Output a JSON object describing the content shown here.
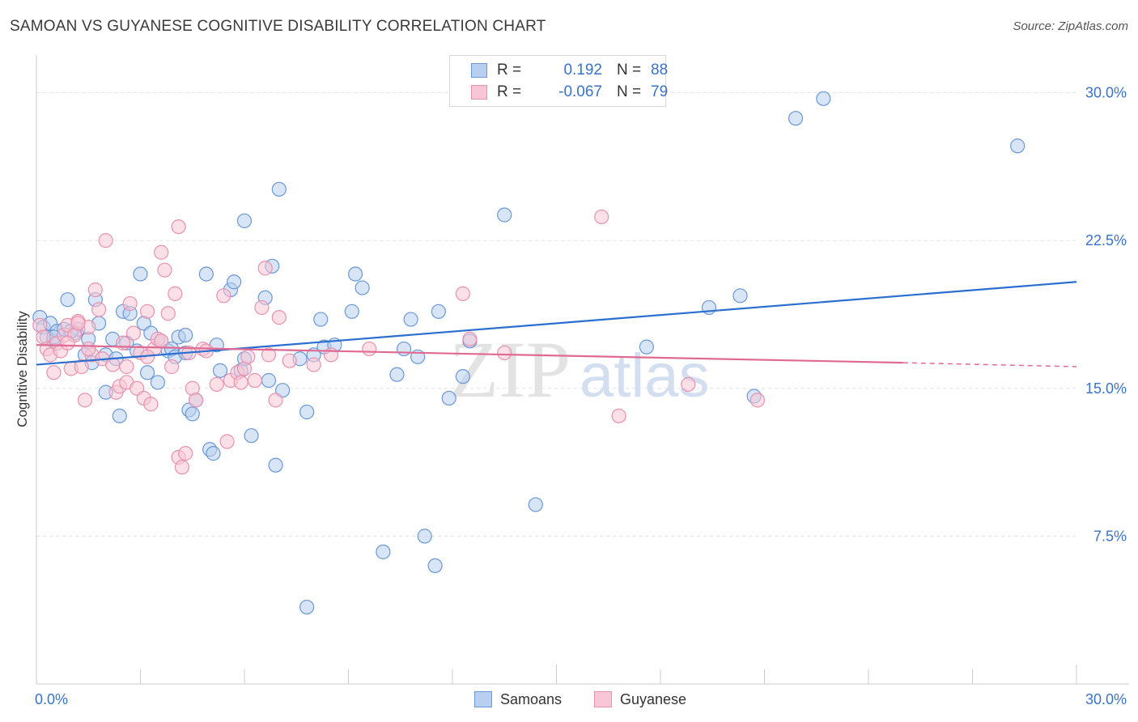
{
  "title": "SAMOAN VS GUYANESE COGNITIVE DISABILITY CORRELATION CHART",
  "source": "Source: ZipAtlas.com",
  "watermark": {
    "zip": "ZIP",
    "atlas": "atlas"
  },
  "legend": {
    "r_label": "R =",
    "n_label": "N =",
    "rows": [
      {
        "name": "Samoans",
        "r": "0.192",
        "n": "88",
        "fill": "#b8cff0",
        "stroke": "#6a98d8"
      },
      {
        "name": "Guyanese",
        "r": "-0.067",
        "n": "79",
        "fill": "#f8c6d6",
        "stroke": "#e892ae"
      }
    ]
  },
  "chart_data": {
    "type": "scatter",
    "title": "SAMOAN VS GUYANESE COGNITIVE DISABILITY CORRELATION CHART",
    "xlabel": "",
    "ylabel": "Cognitive Disability",
    "xlim": [
      0,
      30
    ],
    "ylim": [
      0,
      31.5
    ],
    "x_tick_labels": [
      "0.0%",
      "30.0%"
    ],
    "y_ticks": [
      7.5,
      15.0,
      22.5,
      30.0
    ],
    "y_tick_labels": [
      "7.5%",
      "15.0%",
      "22.5%",
      "30.0%"
    ],
    "grid": true,
    "series": [
      {
        "name": "Samoans",
        "color": "#6a98d8",
        "fill": "#b8cff0",
        "trend": {
          "x": [
            0,
            30
          ],
          "y": [
            16.2,
            20.4
          ],
          "color": "#2a6fd0"
        },
        "points": [
          [
            0.1,
            18.6
          ],
          [
            0.2,
            18.1
          ],
          [
            0.3,
            17.6
          ],
          [
            0.4,
            18.3
          ],
          [
            0.5,
            17.4
          ],
          [
            0.6,
            17.9
          ],
          [
            0.8,
            18.0
          ],
          [
            0.9,
            19.5
          ],
          [
            1.1,
            17.8
          ],
          [
            1.2,
            18.0
          ],
          [
            1.4,
            16.7
          ],
          [
            1.5,
            17.5
          ],
          [
            1.6,
            16.3
          ],
          [
            1.7,
            19.5
          ],
          [
            1.8,
            18.3
          ],
          [
            2.0,
            16.7
          ],
          [
            2.0,
            14.8
          ],
          [
            2.2,
            17.5
          ],
          [
            2.3,
            16.5
          ],
          [
            2.4,
            13.6
          ],
          [
            2.5,
            18.9
          ],
          [
            2.6,
            17.3
          ],
          [
            2.7,
            18.8
          ],
          [
            2.9,
            16.9
          ],
          [
            3.0,
            20.8
          ],
          [
            3.1,
            18.3
          ],
          [
            3.2,
            15.8
          ],
          [
            3.3,
            17.8
          ],
          [
            3.5,
            15.3
          ],
          [
            3.6,
            17.4
          ],
          [
            3.8,
            16.9
          ],
          [
            3.9,
            17.0
          ],
          [
            4.0,
            16.6
          ],
          [
            4.1,
            17.6
          ],
          [
            4.3,
            16.8
          ],
          [
            4.3,
            17.7
          ],
          [
            4.4,
            13.9
          ],
          [
            4.5,
            13.7
          ],
          [
            4.6,
            14.4
          ],
          [
            4.9,
            20.8
          ],
          [
            5.0,
            11.9
          ],
          [
            5.1,
            11.7
          ],
          [
            5.2,
            17.2
          ],
          [
            5.3,
            15.9
          ],
          [
            5.6,
            20.0
          ],
          [
            5.7,
            20.4
          ],
          [
            5.9,
            15.9
          ],
          [
            6.0,
            16.5
          ],
          [
            6.0,
            23.5
          ],
          [
            6.2,
            12.6
          ],
          [
            6.6,
            19.6
          ],
          [
            6.7,
            15.4
          ],
          [
            6.8,
            21.2
          ],
          [
            6.9,
            11.1
          ],
          [
            7.0,
            25.1
          ],
          [
            7.1,
            14.9
          ],
          [
            7.6,
            16.5
          ],
          [
            7.8,
            3.9
          ],
          [
            7.8,
            13.8
          ],
          [
            8.0,
            16.7
          ],
          [
            8.2,
            18.5
          ],
          [
            8.3,
            17.1
          ],
          [
            8.6,
            17.2
          ],
          [
            9.1,
            18.9
          ],
          [
            9.2,
            20.8
          ],
          [
            9.4,
            20.1
          ],
          [
            10.0,
            6.7
          ],
          [
            10.4,
            15.7
          ],
          [
            10.6,
            17.0
          ],
          [
            10.8,
            18.5
          ],
          [
            11.0,
            16.6
          ],
          [
            11.2,
            7.5
          ],
          [
            11.5,
            6.0
          ],
          [
            11.6,
            18.9
          ],
          [
            11.9,
            14.5
          ],
          [
            12.3,
            15.6
          ],
          [
            12.5,
            17.4
          ],
          [
            13.5,
            23.8
          ],
          [
            14.4,
            9.1
          ],
          [
            17.6,
            17.1
          ],
          [
            19.4,
            19.1
          ],
          [
            20.3,
            19.7
          ],
          [
            20.7,
            14.6
          ],
          [
            21.9,
            28.7
          ],
          [
            22.7,
            29.7
          ],
          [
            28.3,
            27.3
          ],
          [
            0.5,
            17.6
          ],
          [
            1.0,
            17.9
          ]
        ]
      },
      {
        "name": "Guyanese",
        "color": "#e892ae",
        "fill": "#f8c6d6",
        "trend": {
          "x": [
            0,
            25
          ],
          "y": [
            17.2,
            16.3
          ],
          "dash_x": [
            25,
            30
          ],
          "dash_y": [
            16.3,
            16.1
          ],
          "color": "#e06a92"
        },
        "points": [
          [
            0.1,
            18.2
          ],
          [
            0.2,
            17.6
          ],
          [
            0.3,
            17.0
          ],
          [
            0.4,
            16.7
          ],
          [
            0.5,
            15.8
          ],
          [
            0.6,
            17.3
          ],
          [
            0.7,
            16.9
          ],
          [
            0.8,
            17.7
          ],
          [
            0.9,
            18.2
          ],
          [
            1.0,
            16.0
          ],
          [
            1.1,
            17.7
          ],
          [
            1.2,
            18.4
          ],
          [
            1.3,
            16.1
          ],
          [
            1.4,
            14.4
          ],
          [
            1.5,
            18.1
          ],
          [
            1.6,
            16.7
          ],
          [
            1.7,
            20.0
          ],
          [
            1.8,
            19.0
          ],
          [
            1.9,
            16.5
          ],
          [
            2.0,
            22.5
          ],
          [
            2.2,
            16.2
          ],
          [
            2.3,
            14.8
          ],
          [
            2.4,
            15.1
          ],
          [
            2.5,
            17.3
          ],
          [
            2.6,
            15.3
          ],
          [
            2.7,
            19.3
          ],
          [
            2.8,
            17.8
          ],
          [
            2.9,
            15.0
          ],
          [
            3.0,
            16.8
          ],
          [
            3.1,
            14.5
          ],
          [
            3.2,
            18.9
          ],
          [
            3.3,
            14.2
          ],
          [
            3.4,
            17.0
          ],
          [
            3.5,
            17.5
          ],
          [
            3.6,
            21.9
          ],
          [
            3.7,
            21.0
          ],
          [
            3.8,
            18.8
          ],
          [
            3.9,
            16.1
          ],
          [
            4.0,
            19.8
          ],
          [
            4.1,
            11.5
          ],
          [
            4.2,
            11.0
          ],
          [
            4.3,
            11.7
          ],
          [
            4.4,
            16.8
          ],
          [
            4.5,
            15.0
          ],
          [
            4.6,
            14.4
          ],
          [
            4.8,
            17.0
          ],
          [
            4.9,
            16.9
          ],
          [
            5.2,
            15.2
          ],
          [
            5.4,
            19.7
          ],
          [
            5.5,
            12.3
          ],
          [
            5.6,
            15.4
          ],
          [
            5.8,
            15.8
          ],
          [
            5.9,
            15.3
          ],
          [
            6.0,
            16.0
          ],
          [
            6.1,
            16.6
          ],
          [
            6.3,
            15.4
          ],
          [
            6.5,
            19.1
          ],
          [
            6.6,
            21.1
          ],
          [
            6.7,
            16.7
          ],
          [
            6.9,
            14.4
          ],
          [
            7.0,
            18.6
          ],
          [
            7.3,
            16.4
          ],
          [
            8.0,
            16.2
          ],
          [
            8.5,
            16.7
          ],
          [
            9.6,
            17.0
          ],
          [
            12.3,
            19.8
          ],
          [
            12.5,
            17.5
          ],
          [
            13.5,
            16.8
          ],
          [
            16.3,
            23.7
          ],
          [
            16.8,
            13.6
          ],
          [
            18.8,
            15.2
          ],
          [
            20.8,
            14.4
          ],
          [
            3.6,
            17.4
          ],
          [
            4.1,
            23.2
          ],
          [
            1.2,
            18.3
          ],
          [
            2.6,
            16.1
          ],
          [
            1.5,
            17.0
          ],
          [
            3.2,
            16.6
          ],
          [
            0.9,
            17.3
          ]
        ]
      }
    ]
  }
}
